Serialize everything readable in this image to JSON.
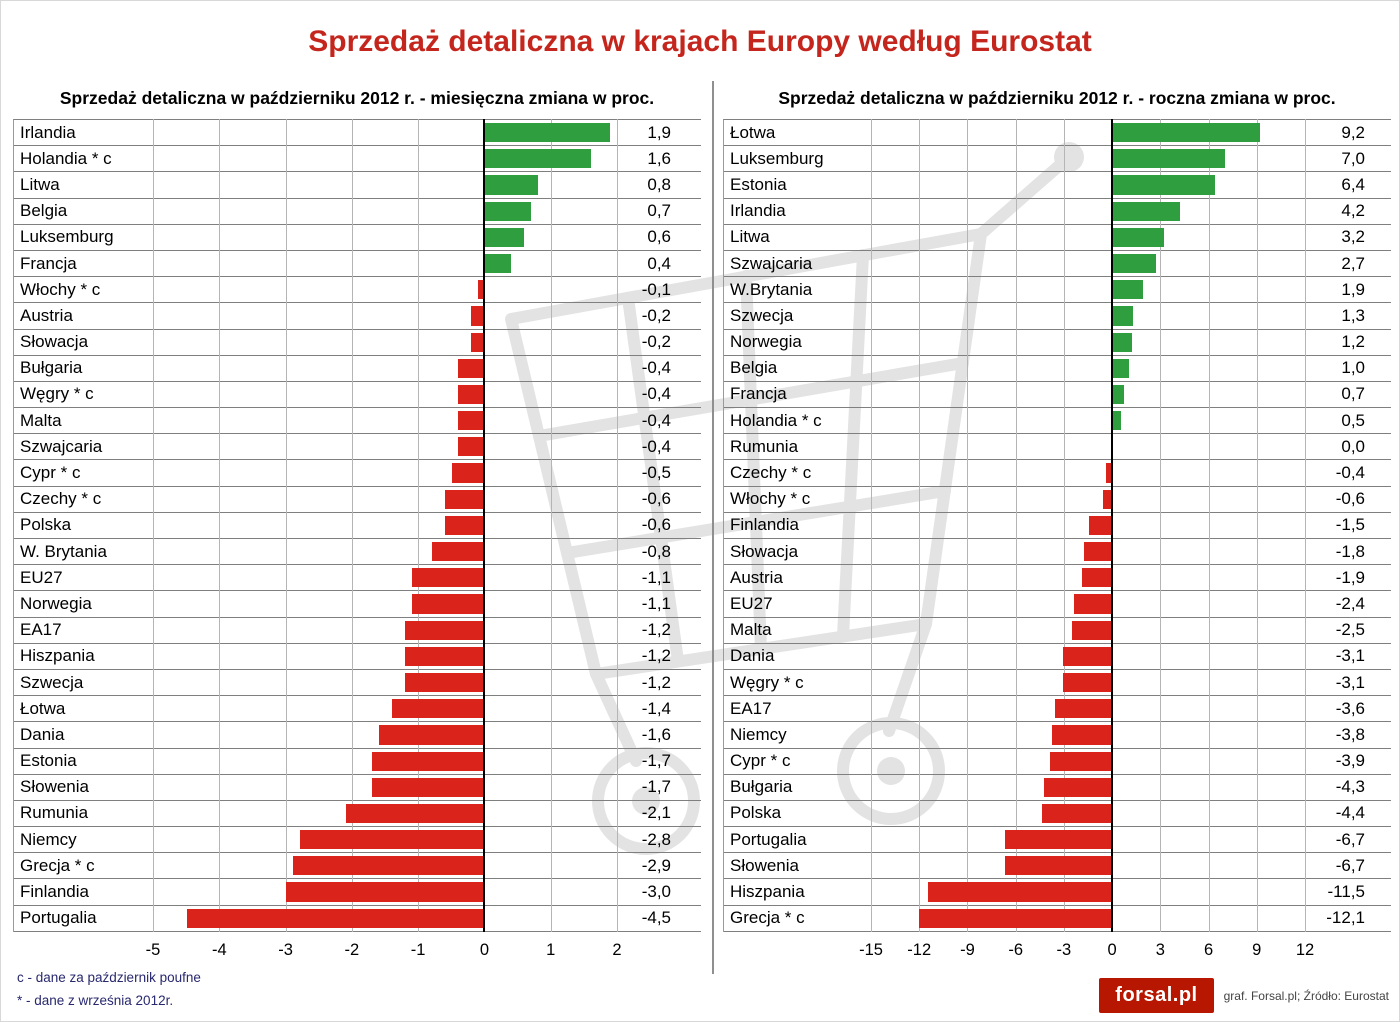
{
  "page": {
    "title": "Sprzedaż detaliczna w krajach Europy według Eurostat",
    "footnotes": [
      "c - dane za październik poufne",
      "* - dane z września 2012r."
    ],
    "logo": "forsal.pl",
    "credit": "graf. Forsal.pl; Źródło: Eurostat"
  },
  "colors": {
    "positive_bar": "#2f9e3f",
    "negative_bar": "#da241b",
    "title_red": "#c4261d",
    "gridline": "#b5b5b5",
    "row_line": "#7f7f7f"
  },
  "chart_data": [
    {
      "type": "bar",
      "orientation": "horizontal",
      "title": "Sprzedaż detaliczna w październiku 2012 r. - miesięczna zmiana w proc.",
      "xlim": [
        -5,
        2
      ],
      "xticks": [
        -5,
        -4,
        -3,
        -2,
        -1,
        0,
        1,
        2
      ],
      "grid": true,
      "legend": false,
      "categories": [
        "Irlandia",
        "Holandia * c",
        "Litwa",
        "Belgia",
        "Luksemburg",
        "Francja",
        "Włochy * c",
        "Austria",
        "Słowacja",
        "Bułgaria",
        "Węgry * c",
        "Malta",
        "Szwajcaria",
        "Cypr * c",
        "Czechy * c",
        "Polska",
        "W. Brytania",
        "EU27",
        "Norwegia",
        "EA17",
        "Hiszpania",
        "Szwecja",
        "Łotwa",
        "Dania",
        "Estonia",
        "Słowenia",
        "Rumunia",
        "Niemcy",
        "Grecja * c",
        "Finlandia",
        "Portugalia"
      ],
      "values": [
        1.9,
        1.6,
        0.8,
        0.7,
        0.6,
        0.4,
        -0.1,
        -0.2,
        -0.2,
        -0.4,
        -0.4,
        -0.4,
        -0.4,
        -0.5,
        -0.6,
        -0.6,
        -0.8,
        -1.1,
        -1.1,
        -1.2,
        -1.2,
        -1.2,
        -1.4,
        -1.6,
        -1.7,
        -1.7,
        -2.1,
        -2.8,
        -2.9,
        -3.0,
        -4.5
      ]
    },
    {
      "type": "bar",
      "orientation": "horizontal",
      "title": "Sprzedaż detaliczna w październiku 2012 r. - roczna zmiana w proc.",
      "xlim": [
        -15,
        12
      ],
      "xticks": [
        -15,
        -12,
        -9,
        -6,
        -3,
        0,
        3,
        6,
        9,
        12
      ],
      "grid": true,
      "legend": false,
      "categories": [
        "Łotwa",
        "Luksemburg",
        "Estonia",
        "Irlandia",
        "Litwa",
        "Szwajcaria",
        "W.Brytania",
        "Szwecja",
        "Norwegia",
        "Belgia",
        "Francja",
        "Holandia * c",
        "Rumunia",
        "Czechy * c",
        "Włochy * c",
        "Finlandia",
        "Słowacja",
        "Austria",
        "EU27",
        "Malta",
        "Dania",
        "Węgry * c",
        "EA17",
        "Niemcy",
        "Cypr * c",
        "Bułgaria",
        "Polska",
        "Portugalia",
        "Słowenia",
        "Hiszpania",
        "Grecja * c"
      ],
      "values": [
        9.2,
        7.0,
        6.4,
        4.2,
        3.2,
        2.7,
        1.9,
        1.3,
        1.2,
        1.0,
        0.7,
        0.5,
        0.0,
        -0.4,
        -0.6,
        -1.5,
        -1.8,
        -1.9,
        -2.4,
        -2.5,
        -3.1,
        -3.1,
        -3.6,
        -3.8,
        -3.9,
        -4.3,
        -4.4,
        -6.7,
        -6.7,
        -11.5,
        -12.1
      ]
    }
  ]
}
